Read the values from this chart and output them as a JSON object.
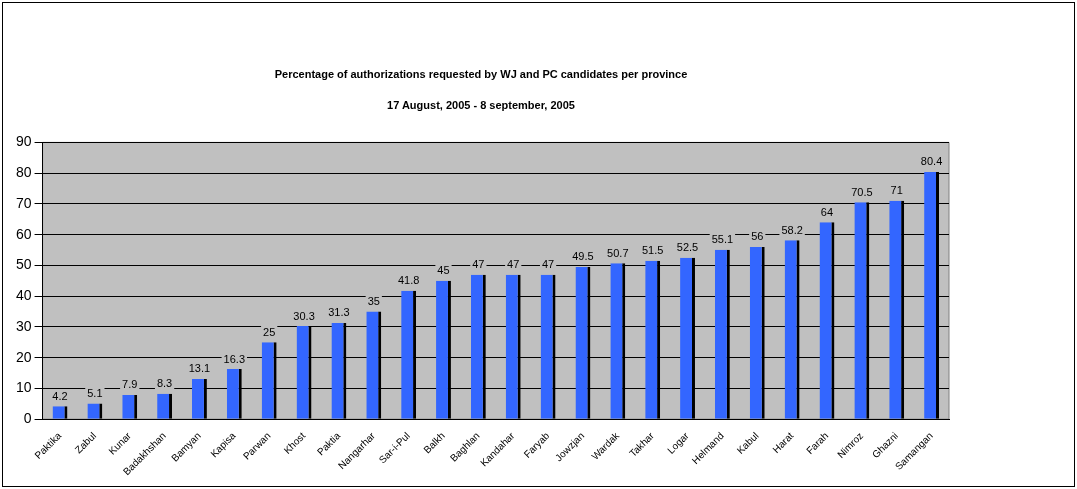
{
  "chart_data": {
    "type": "bar",
    "title": "Percentage of authorizations requested by WJ and PC candidates per province",
    "subtitle": "17 August, 2005 - 8 september, 2005",
    "categories": [
      "Paktika",
      "Zabul",
      "Kunar",
      "Badakhshan",
      "Bamyan",
      "Kapisa",
      "Parwan",
      "Khost",
      "Paktia",
      "Nangarhar",
      "Sar-i-Pul",
      "Balkh",
      "Baghlan",
      "Kandahar",
      "Faryab",
      "Jowzjan",
      "Wardak",
      "Takhar",
      "Logar",
      "Helmand",
      "Kabul",
      "Harat",
      "Farah",
      "Nimroz",
      "Ghazni",
      "Samangan"
    ],
    "values": [
      4.2,
      5.1,
      7.9,
      8.3,
      13.1,
      16.3,
      25,
      30.3,
      31.3,
      35,
      41.8,
      45,
      47,
      47,
      47,
      49.5,
      50.7,
      51.5,
      52.5,
      55.1,
      56,
      58.2,
      64,
      70.5,
      71,
      80.4
    ],
    "color": "#3366ff",
    "ylim": [
      0,
      90
    ],
    "yticks": [
      0,
      10,
      20,
      30,
      40,
      50,
      60,
      70,
      80,
      90
    ],
    "grid": "y",
    "data_labels": true
  }
}
